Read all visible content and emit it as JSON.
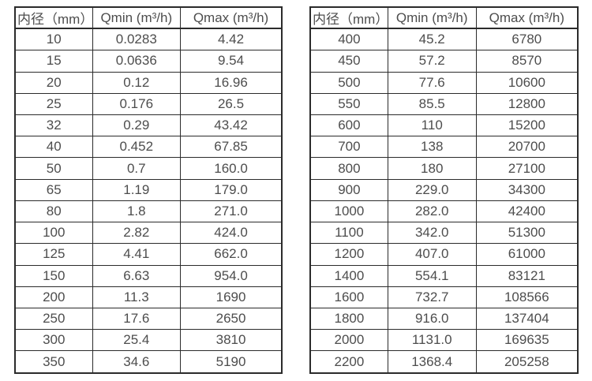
{
  "page": {
    "background": "#ffffff"
  },
  "colors": {
    "border": "#2b2b2b",
    "text": "#4d4d4d"
  },
  "tables": [
    {
      "name": "flow-rate-table-small-diameters",
      "headers": [
        "内径（mm）",
        "Qmin (m³/h)",
        "Qmax (m³/h)"
      ],
      "rows": [
        [
          "10",
          "0.0283",
          "4.42"
        ],
        [
          "15",
          "0.0636",
          "9.54"
        ],
        [
          "20",
          "0.12",
          "16.96"
        ],
        [
          "25",
          "0.176",
          "26.5"
        ],
        [
          "32",
          "0.29",
          "43.42"
        ],
        [
          "40",
          "0.452",
          "67.85"
        ],
        [
          "50",
          "0.7",
          "160.0"
        ],
        [
          "65",
          "1.19",
          "179.0"
        ],
        [
          "80",
          "1.8",
          "271.0"
        ],
        [
          "100",
          "2.82",
          "424.0"
        ],
        [
          "125",
          "4.41",
          "662.0"
        ],
        [
          "150",
          "6.63",
          "954.0"
        ],
        [
          "200",
          "11.3",
          "1690"
        ],
        [
          "250",
          "17.6",
          "2650"
        ],
        [
          "300",
          "25.4",
          "3810"
        ],
        [
          "350",
          "34.6",
          "5190"
        ]
      ]
    },
    {
      "name": "flow-rate-table-large-diameters",
      "headers": [
        "内径（mm）",
        "Qmin (m³/h)",
        "Qmax (m³/h)"
      ],
      "rows": [
        [
          "400",
          "45.2",
          "6780"
        ],
        [
          "450",
          "57.2",
          "8570"
        ],
        [
          "500",
          "77.6",
          "10600"
        ],
        [
          "550",
          "85.5",
          "12800"
        ],
        [
          "600",
          "110",
          "15200"
        ],
        [
          "700",
          "138",
          "20700"
        ],
        [
          "800",
          "180",
          "27100"
        ],
        [
          "900",
          "229.0",
          "34300"
        ],
        [
          "1000",
          "282.0",
          "42400"
        ],
        [
          "1100",
          "342.0",
          "51300"
        ],
        [
          "1200",
          "407.0",
          "61000"
        ],
        [
          "1400",
          "554.1",
          "83121"
        ],
        [
          "1600",
          "732.7",
          "108566"
        ],
        [
          "1800",
          "916.0",
          "137404"
        ],
        [
          "2000",
          "1131.0",
          "169635"
        ],
        [
          "2200",
          "1368.4",
          "205258"
        ]
      ]
    }
  ]
}
